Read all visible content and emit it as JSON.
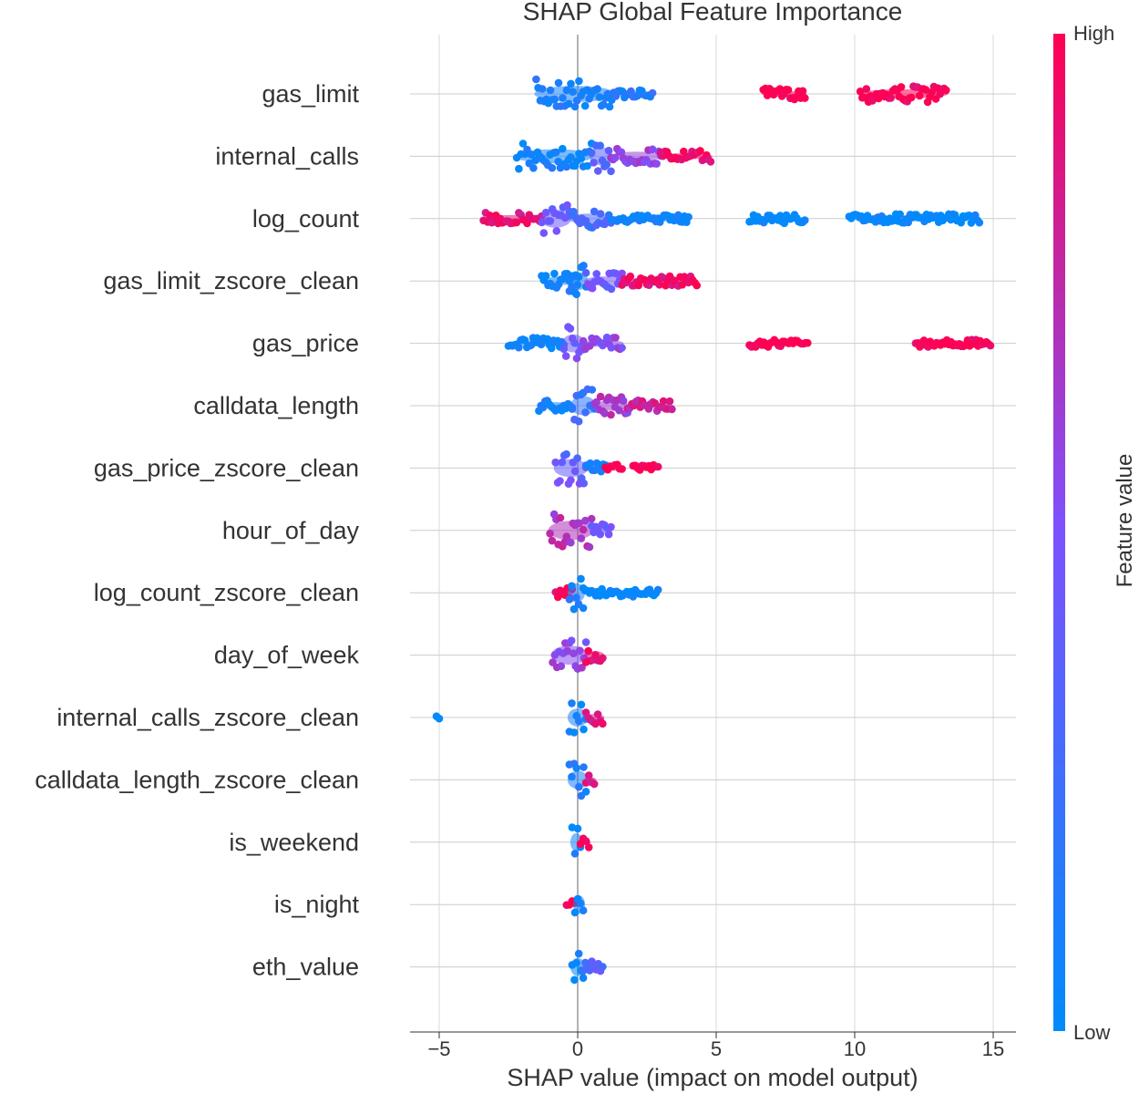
{
  "chart_data": {
    "type": "scatter",
    "title": "SHAP Global Feature Importance",
    "xlabel": "SHAP value (impact on model output)",
    "ylabel": "",
    "xlim": [
      -6,
      16
    ],
    "xticks": [
      -5,
      0,
      5,
      10,
      15
    ],
    "xtick_labels": [
      "−5",
      "0",
      "5",
      "10",
      "15"
    ],
    "grid": true,
    "colorbar": {
      "label": "Feature value",
      "high_label": "High",
      "low_label": "Low",
      "high_color": "#ff0052",
      "low_color": "#008bfb"
    },
    "features": [
      {
        "name": "gas_limit",
        "segments": [
          {
            "from": -1.5,
            "to": 1.3,
            "value": 0.1,
            "height": 0.8
          },
          {
            "from": 1.3,
            "to": 2.7,
            "value": 0.15,
            "height": 0.2
          },
          {
            "from": 6.7,
            "to": 8.2,
            "value": 1.0,
            "height": 0.3
          },
          {
            "from": 10.2,
            "to": 13.3,
            "value": 1.0,
            "height": 0.45
          }
        ]
      },
      {
        "name": "internal_calls",
        "segments": [
          {
            "from": -2.2,
            "to": 0.5,
            "value": 0.05,
            "height": 0.7
          },
          {
            "from": 0.5,
            "to": 1.2,
            "value": 0.35,
            "height": 0.9
          },
          {
            "from": 1.2,
            "to": 3.0,
            "value": 0.6,
            "height": 0.45
          },
          {
            "from": 3.0,
            "to": 4.8,
            "value": 0.95,
            "height": 0.3
          }
        ]
      },
      {
        "name": "log_count",
        "segments": [
          {
            "from": -3.4,
            "to": -1.3,
            "value": 0.9,
            "height": 0.35
          },
          {
            "from": -1.3,
            "to": -0.3,
            "value": 0.45,
            "height": 0.9
          },
          {
            "from": -0.3,
            "to": 1.2,
            "value": 0.3,
            "height": 0.5
          },
          {
            "from": 1.2,
            "to": 4.0,
            "value": 0.05,
            "height": 0.2
          },
          {
            "from": 6.2,
            "to": 8.2,
            "value": 0.0,
            "height": 0.25
          },
          {
            "from": 9.8,
            "to": 14.5,
            "value": 0.0,
            "height": 0.25
          }
        ]
      },
      {
        "name": "gas_limit_zscore_clean",
        "segments": [
          {
            "from": -1.3,
            "to": 0.0,
            "value": 0.05,
            "height": 0.4
          },
          {
            "from": -0.3,
            "to": 0.3,
            "value": 0.1,
            "height": 0.9
          },
          {
            "from": 0.3,
            "to": 1.6,
            "value": 0.45,
            "height": 0.45
          },
          {
            "from": 1.6,
            "to": 4.3,
            "value": 0.95,
            "height": 0.3
          }
        ]
      },
      {
        "name": "gas_price",
        "segments": [
          {
            "from": -2.5,
            "to": -0.5,
            "value": 0.05,
            "height": 0.3
          },
          {
            "from": -0.5,
            "to": 0.2,
            "value": 0.45,
            "height": 0.9
          },
          {
            "from": 0.2,
            "to": 1.6,
            "value": 0.55,
            "height": 0.35
          },
          {
            "from": 6.2,
            "to": 8.3,
            "value": 1.0,
            "height": 0.2
          },
          {
            "from": 12.2,
            "to": 14.9,
            "value": 1.0,
            "height": 0.2
          }
        ]
      },
      {
        "name": "calldata_length",
        "segments": [
          {
            "from": -1.4,
            "to": -0.2,
            "value": 0.05,
            "height": 0.35
          },
          {
            "from": -0.2,
            "to": 0.6,
            "value": 0.2,
            "height": 0.95
          },
          {
            "from": 0.6,
            "to": 1.8,
            "value": 0.65,
            "height": 0.5
          },
          {
            "from": 1.8,
            "to": 3.4,
            "value": 0.8,
            "height": 0.3
          }
        ]
      },
      {
        "name": "gas_price_zscore_clean",
        "segments": [
          {
            "from": -0.8,
            "to": 0.3,
            "value": 0.4,
            "height": 0.9
          },
          {
            "from": 0.3,
            "to": 1.0,
            "value": 0.1,
            "height": 0.3
          },
          {
            "from": 1.0,
            "to": 1.6,
            "value": 1.0,
            "height": 0.2
          },
          {
            "from": 2.0,
            "to": 2.9,
            "value": 1.0,
            "height": 0.2
          }
        ]
      },
      {
        "name": "hour_of_day",
        "segments": [
          {
            "from": -1.0,
            "to": 0.5,
            "value": 0.7,
            "height": 0.95
          },
          {
            "from": 0.5,
            "to": 1.2,
            "value": 0.45,
            "height": 0.35
          }
        ]
      },
      {
        "name": "log_count_zscore_clean",
        "segments": [
          {
            "from": -0.8,
            "to": -0.2,
            "value": 0.95,
            "height": 0.3
          },
          {
            "from": -0.3,
            "to": 0.2,
            "value": 0.1,
            "height": 0.95
          },
          {
            "from": 0.2,
            "to": 2.9,
            "value": 0.0,
            "height": 0.25
          }
        ]
      },
      {
        "name": "day_of_week",
        "segments": [
          {
            "from": -0.9,
            "to": 0.3,
            "value": 0.55,
            "height": 0.95
          },
          {
            "from": 0.3,
            "to": 0.9,
            "value": 0.9,
            "height": 0.4
          }
        ]
      },
      {
        "name": "internal_calls_zscore_clean",
        "segments": [
          {
            "from": -5.1,
            "to": -5.0,
            "value": 0.0,
            "height": 0.15
          },
          {
            "from": -0.3,
            "to": 0.3,
            "value": 0.1,
            "height": 0.9
          },
          {
            "from": 0.3,
            "to": 0.9,
            "value": 0.85,
            "height": 0.35
          }
        ]
      },
      {
        "name": "calldata_length_zscore_clean",
        "segments": [
          {
            "from": -0.3,
            "to": 0.3,
            "value": 0.1,
            "height": 0.9
          },
          {
            "from": 0.3,
            "to": 0.6,
            "value": 0.8,
            "height": 0.25
          }
        ]
      },
      {
        "name": "is_weekend",
        "segments": [
          {
            "from": -0.2,
            "to": 0.1,
            "value": 0.05,
            "height": 0.9
          },
          {
            "from": 0.1,
            "to": 0.4,
            "value": 1.0,
            "height": 0.3
          }
        ]
      },
      {
        "name": "is_night",
        "segments": [
          {
            "from": -0.4,
            "to": -0.1,
            "value": 1.0,
            "height": 0.25
          },
          {
            "from": -0.1,
            "to": 0.2,
            "value": 0.05,
            "height": 0.9
          }
        ]
      },
      {
        "name": "eth_value",
        "segments": [
          {
            "from": -0.2,
            "to": 0.2,
            "value": 0.0,
            "height": 0.9
          },
          {
            "from": 0.2,
            "to": 0.9,
            "value": 0.35,
            "height": 0.3
          }
        ]
      }
    ]
  }
}
